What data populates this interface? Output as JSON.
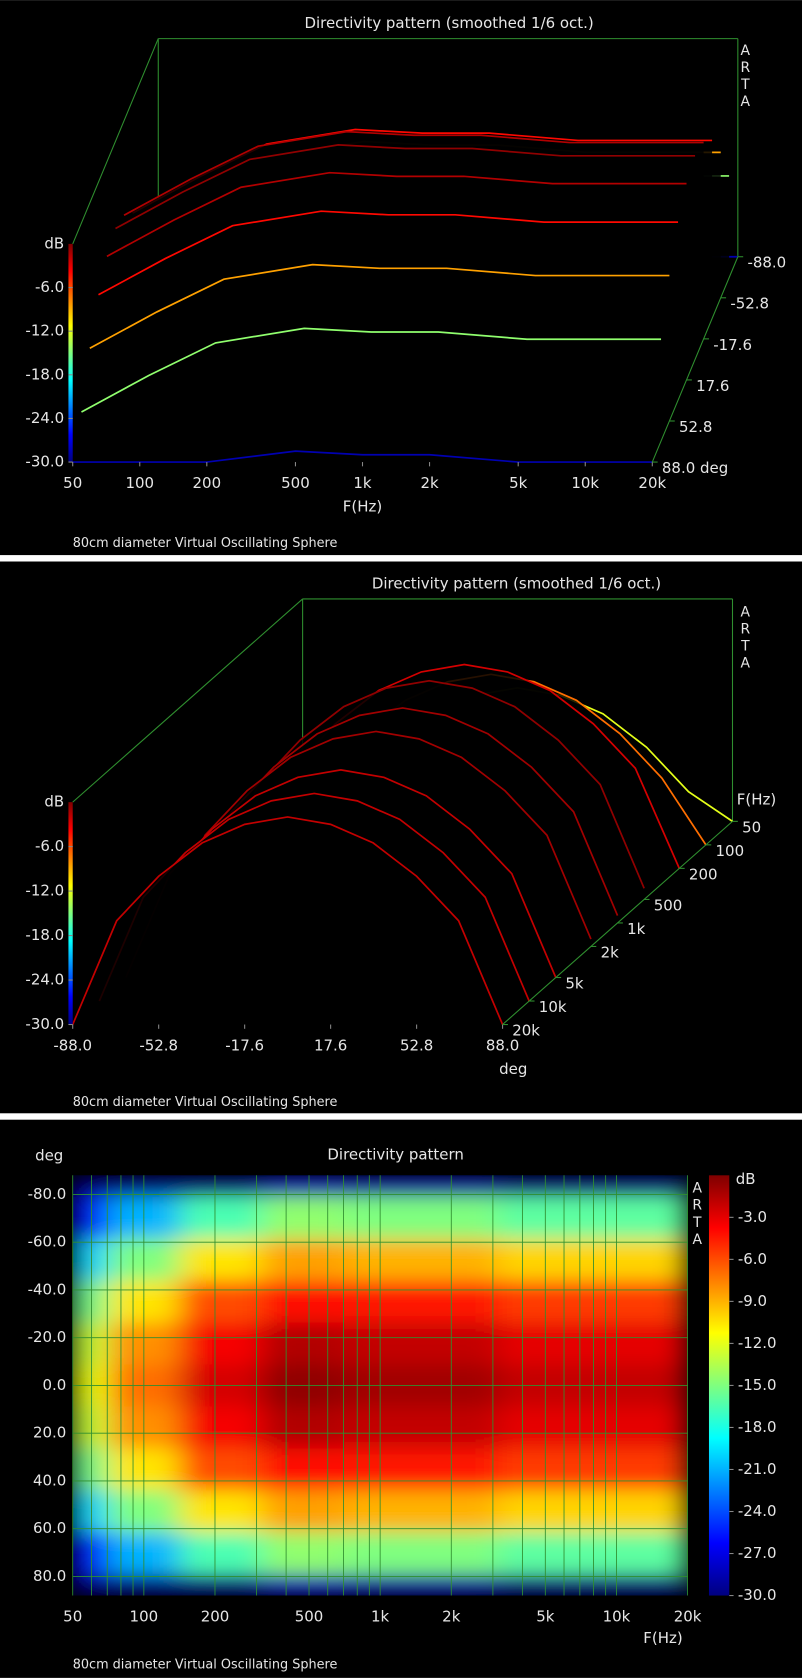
{
  "chart_data": [
    {
      "type": "waterfall3d",
      "title": "Directivity pattern (smoothed 1/6 oct.)",
      "watermark": "ARTA",
      "footnote": "80cm diameter Virtual Oscillating Sphere",
      "x_label": "F(Hz)",
      "z_label": "dB",
      "log_x": true,
      "frequencies": [
        50,
        100,
        200,
        500,
        1000,
        2000,
        5000,
        10000,
        20000
      ],
      "angles": [
        -88,
        -70,
        -52.8,
        -35,
        -17.6,
        0,
        17.6,
        35,
        52.8,
        70,
        88
      ],
      "values": [
        [
          -30,
          -30,
          -30,
          -28.5,
          -29,
          -29,
          -30,
          -30,
          -30
        ],
        [
          -26,
          -21,
          -16.5,
          -14.5,
          -15,
          -15,
          -16,
          -16,
          -16
        ],
        [
          -20,
          -15,
          -10.5,
          -8.5,
          -9,
          -9,
          -10,
          -10,
          -10
        ],
        [
          -15.5,
          -10.5,
          -6,
          -4,
          -4.5,
          -4.5,
          -5.5,
          -5.5,
          -5.5
        ],
        [
          -13,
          -8,
          -3.5,
          -1.5,
          -2,
          -2,
          -3,
          -3,
          -3
        ],
        [
          -12,
          -7,
          -2.5,
          -0.5,
          -1,
          -1,
          -2,
          -2,
          -2
        ],
        [
          -13,
          -8,
          -3.5,
          -1.5,
          -2,
          -2,
          -3,
          -3,
          -3
        ],
        [
          -15.5,
          -10.5,
          -6,
          -4,
          -4.5,
          -4.5,
          -5.5,
          -5.5,
          -5.5
        ],
        [
          -20,
          -15,
          -10.5,
          -8.5,
          -9,
          -9,
          -10,
          -10,
          -10
        ],
        [
          -26,
          -21,
          -16.5,
          -14.5,
          -15,
          -15,
          -16,
          -16,
          -16
        ],
        [
          -30,
          -30,
          -30,
          -28.5,
          -29,
          -29,
          -30,
          -30,
          -30
        ]
      ],
      "xlim": [
        50,
        20000
      ],
      "xticks": [
        50,
        100,
        200,
        500,
        {
          "value": 1000,
          "label": "1k"
        },
        {
          "value": 2000,
          "label": "2k"
        },
        {
          "value": 5000,
          "label": "5k"
        },
        {
          "value": 10000,
          "label": "10k"
        },
        {
          "value": 20000,
          "label": "20k"
        }
      ],
      "depthlim": [
        88,
        -88
      ],
      "depthticks": [
        {
          "value": 88,
          "label": "88.0 deg"
        },
        52.8,
        17.6,
        -17.6,
        -52.8,
        {
          "value": -88,
          "label": "-88.0"
        }
      ],
      "zlim": [
        -30,
        0
      ],
      "zticks": [
        {
          "value": -6,
          "label": "-6.0"
        },
        {
          "value": -12,
          "label": "-12.0"
        },
        {
          "value": -18,
          "label": "-18.0"
        },
        {
          "value": -24,
          "label": "-24.0"
        },
        {
          "value": -30,
          "label": "-30.0"
        }
      ],
      "colorscale": [
        "#00007f",
        "#0000ff",
        "#007fff",
        "#00ffff",
        "#7fff7f",
        "#ffff00",
        "#ff7f00",
        "#ff0000",
        "#7f0000"
      ]
    },
    {
      "type": "waterfall3d",
      "title": "Directivity pattern (smoothed 1/6 oct.)",
      "watermark": "ARTA",
      "footnote": "80cm diameter Virtual Oscillating Sphere",
      "x_label": "deg",
      "depth_label": "F(Hz)",
      "z_label": "dB",
      "log_depth": true,
      "frequencies": [
        50,
        100,
        200,
        500,
        1000,
        2000,
        5000,
        10000,
        20000
      ],
      "angles": [
        -88,
        -70,
        -52.8,
        -35,
        -17.6,
        0,
        17.6,
        35,
        52.8,
        70,
        88
      ],
      "values": [
        [
          -30,
          -30,
          -30,
          -28.5,
          -29,
          -29,
          -30,
          -30,
          -30
        ],
        [
          -26,
          -21,
          -16.5,
          -14.5,
          -15,
          -15,
          -16,
          -16,
          -16
        ],
        [
          -20,
          -15,
          -10.5,
          -8.5,
          -9,
          -9,
          -10,
          -10,
          -10
        ],
        [
          -15.5,
          -10.5,
          -6,
          -4,
          -4.5,
          -4.5,
          -5.5,
          -5.5,
          -5.5
        ],
        [
          -13,
          -8,
          -3.5,
          -1.5,
          -2,
          -2,
          -3,
          -3,
          -3
        ],
        [
          -12,
          -7,
          -2.5,
          -0.5,
          -1,
          -1,
          -2,
          -2,
          -2
        ],
        [
          -13,
          -8,
          -3.5,
          -1.5,
          -2,
          -2,
          -3,
          -3,
          -3
        ],
        [
          -15.5,
          -10.5,
          -6,
          -4,
          -4.5,
          -4.5,
          -5.5,
          -5.5,
          -5.5
        ],
        [
          -20,
          -15,
          -10.5,
          -8.5,
          -9,
          -9,
          -10,
          -10,
          -10
        ],
        [
          -26,
          -21,
          -16.5,
          -14.5,
          -15,
          -15,
          -16,
          -16,
          -16
        ],
        [
          -30,
          -30,
          -30,
          -28.5,
          -29,
          -29,
          -30,
          -30,
          -30
        ]
      ],
      "xlim": [
        -88,
        88
      ],
      "xticks": [
        {
          "value": -88,
          "label": "-88.0"
        },
        -52.8,
        -17.6,
        17.6,
        52.8,
        {
          "value": 88,
          "label": "88.0"
        }
      ],
      "depthlim": [
        20000,
        50
      ],
      "depthticks": [
        {
          "value": 20000,
          "label": "20k"
        },
        {
          "value": 10000,
          "label": "10k"
        },
        {
          "value": 5000,
          "label": "5k"
        },
        {
          "value": 2000,
          "label": "2k"
        },
        {
          "value": 1000,
          "label": "1k"
        },
        500,
        200,
        100,
        50
      ],
      "zlim": [
        -30,
        0
      ],
      "zticks": [
        {
          "value": -6,
          "label": "-6.0"
        },
        {
          "value": -12,
          "label": "-12.0"
        },
        {
          "value": -18,
          "label": "-18.0"
        },
        {
          "value": -24,
          "label": "-24.0"
        },
        {
          "value": -30,
          "label": "-30.0"
        }
      ],
      "colorscale": [
        "#00007f",
        "#0000ff",
        "#007fff",
        "#00ffff",
        "#7fff7f",
        "#ffff00",
        "#ff7f00",
        "#ff0000",
        "#7f0000"
      ]
    },
    {
      "type": "heatmap",
      "title": "Directivity pattern",
      "watermark": "ARTA",
      "footnote": "80cm diameter Virtual Oscillating Sphere",
      "x_label": "F(Hz)",
      "y_label": "deg",
      "z_label": "dB",
      "log_x": true,
      "grid": true,
      "frequencies": [
        50,
        100,
        200,
        500,
        1000,
        2000,
        5000,
        10000,
        20000
      ],
      "angles": [
        -88,
        -70,
        -52.8,
        -35,
        -17.6,
        0,
        17.6,
        35,
        52.8,
        70,
        88
      ],
      "values": [
        [
          -30,
          -30,
          -30,
          -28.5,
          -29,
          -29,
          -30,
          -30,
          -30
        ],
        [
          -26,
          -21,
          -16.5,
          -14.5,
          -15,
          -15,
          -16,
          -16,
          -16
        ],
        [
          -20,
          -15,
          -10.5,
          -8.5,
          -9,
          -9,
          -10,
          -10,
          -10
        ],
        [
          -15.5,
          -10.5,
          -6,
          -4,
          -4.5,
          -4.5,
          -5.5,
          -5.5,
          -5.5
        ],
        [
          -13,
          -8,
          -3.5,
          -1.5,
          -2,
          -2,
          -3,
          -3,
          -3
        ],
        [
          -12,
          -7,
          -2.5,
          -0.5,
          -1,
          -1,
          -2,
          -2,
          -2
        ],
        [
          -13,
          -8,
          -3.5,
          -1.5,
          -2,
          -2,
          -3,
          -3,
          -3
        ],
        [
          -15.5,
          -10.5,
          -6,
          -4,
          -4.5,
          -4.5,
          -5.5,
          -5.5,
          -5.5
        ],
        [
          -20,
          -15,
          -10.5,
          -8.5,
          -9,
          -9,
          -10,
          -10,
          -10
        ],
        [
          -26,
          -21,
          -16.5,
          -14.5,
          -15,
          -15,
          -16,
          -16,
          -16
        ],
        [
          -30,
          -30,
          -30,
          -28.5,
          -29,
          -29,
          -30,
          -30,
          -30
        ]
      ],
      "xlim": [
        50,
        20000
      ],
      "xticks": [
        50,
        100,
        200,
        500,
        {
          "value": 1000,
          "label": "1k"
        },
        {
          "value": 2000,
          "label": "2k"
        },
        {
          "value": 5000,
          "label": "5k"
        },
        {
          "value": 10000,
          "label": "10k"
        },
        {
          "value": 20000,
          "label": "20k"
        }
      ],
      "xminor": [
        60,
        70,
        80,
        90,
        300,
        400,
        600,
        700,
        800,
        900,
        3000,
        4000,
        6000,
        7000,
        8000,
        9000
      ],
      "ylim": [
        -88,
        88
      ],
      "yticks": [
        {
          "value": -80,
          "label": "-80.0"
        },
        {
          "value": -60,
          "label": "-60.0"
        },
        {
          "value": -40,
          "label": "-40.0"
        },
        {
          "value": -20,
          "label": "-20.0"
        },
        {
          "value": 0,
          "label": "0.0"
        },
        {
          "value": 20,
          "label": "20.0"
        },
        {
          "value": 40,
          "label": "40.0"
        },
        {
          "value": 60,
          "label": "60.0"
        },
        {
          "value": 80,
          "label": "80.0"
        }
      ],
      "zlim": [
        -30,
        0
      ],
      "zticks": [
        {
          "value": -3,
          "label": "-3.0"
        },
        {
          "value": -6,
          "label": "-6.0"
        },
        {
          "value": -9,
          "label": "-9.0"
        },
        {
          "value": -12,
          "label": "-12.0"
        },
        {
          "value": -15,
          "label": "-15.0"
        },
        {
          "value": -18,
          "label": "-18.0"
        },
        {
          "value": -21,
          "label": "-21.0"
        },
        {
          "value": -24,
          "label": "-24.0"
        },
        {
          "value": -27,
          "label": "-27.0"
        },
        {
          "value": -30,
          "label": "-30.0"
        }
      ],
      "colorscale": [
        "#00007f",
        "#0000ff",
        "#007fff",
        "#00ffff",
        "#7fff7f",
        "#ffff00",
        "#ff7f00",
        "#ff0000",
        "#7f0000"
      ]
    }
  ]
}
